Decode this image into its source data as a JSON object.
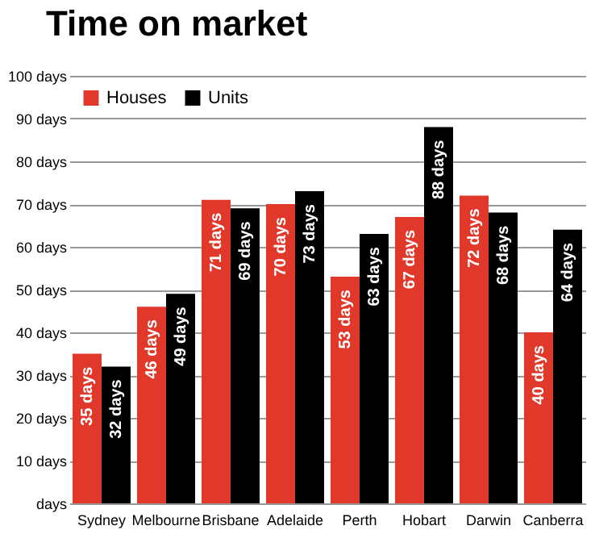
{
  "chart_data": {
    "type": "bar",
    "title": "Time on market",
    "categories": [
      "Sydney",
      "Melbourne",
      "Brisbane",
      "Adelaide",
      "Perth",
      "Hobart",
      "Darwin",
      "Canberra"
    ],
    "series": [
      {
        "name": "Houses",
        "color": "#e0392b",
        "values": [
          35,
          46,
          71,
          70,
          53,
          67,
          72,
          40
        ],
        "value_labels": [
          "35 days",
          "46 days",
          "71 days",
          "70 days",
          "53 days",
          "67 days",
          "72 days",
          "40 days"
        ]
      },
      {
        "name": "Units",
        "color": "#000000",
        "values": [
          32,
          49,
          69,
          73,
          63,
          88,
          68,
          64
        ],
        "value_labels": [
          "32 days",
          "49 days",
          "69 days",
          "73 days",
          "63 days",
          "88 days",
          "68 days",
          "64 days"
        ]
      }
    ],
    "ylim": [
      0,
      100
    ],
    "yticks": [
      {
        "value": 0,
        "label": "days"
      },
      {
        "value": 10,
        "label": "10 days"
      },
      {
        "value": 20,
        "label": "20 days"
      },
      {
        "value": 30,
        "label": "30 days"
      },
      {
        "value": 40,
        "label": "40 days"
      },
      {
        "value": 50,
        "label": "50 days"
      },
      {
        "value": 60,
        "label": "60 days"
      },
      {
        "value": 70,
        "label": "70 days"
      },
      {
        "value": 80,
        "label": "80 days"
      },
      {
        "value": 90,
        "label": "90 days"
      },
      {
        "value": 100,
        "label": "100 days"
      }
    ],
    "grid": "y",
    "legend": "top left"
  }
}
